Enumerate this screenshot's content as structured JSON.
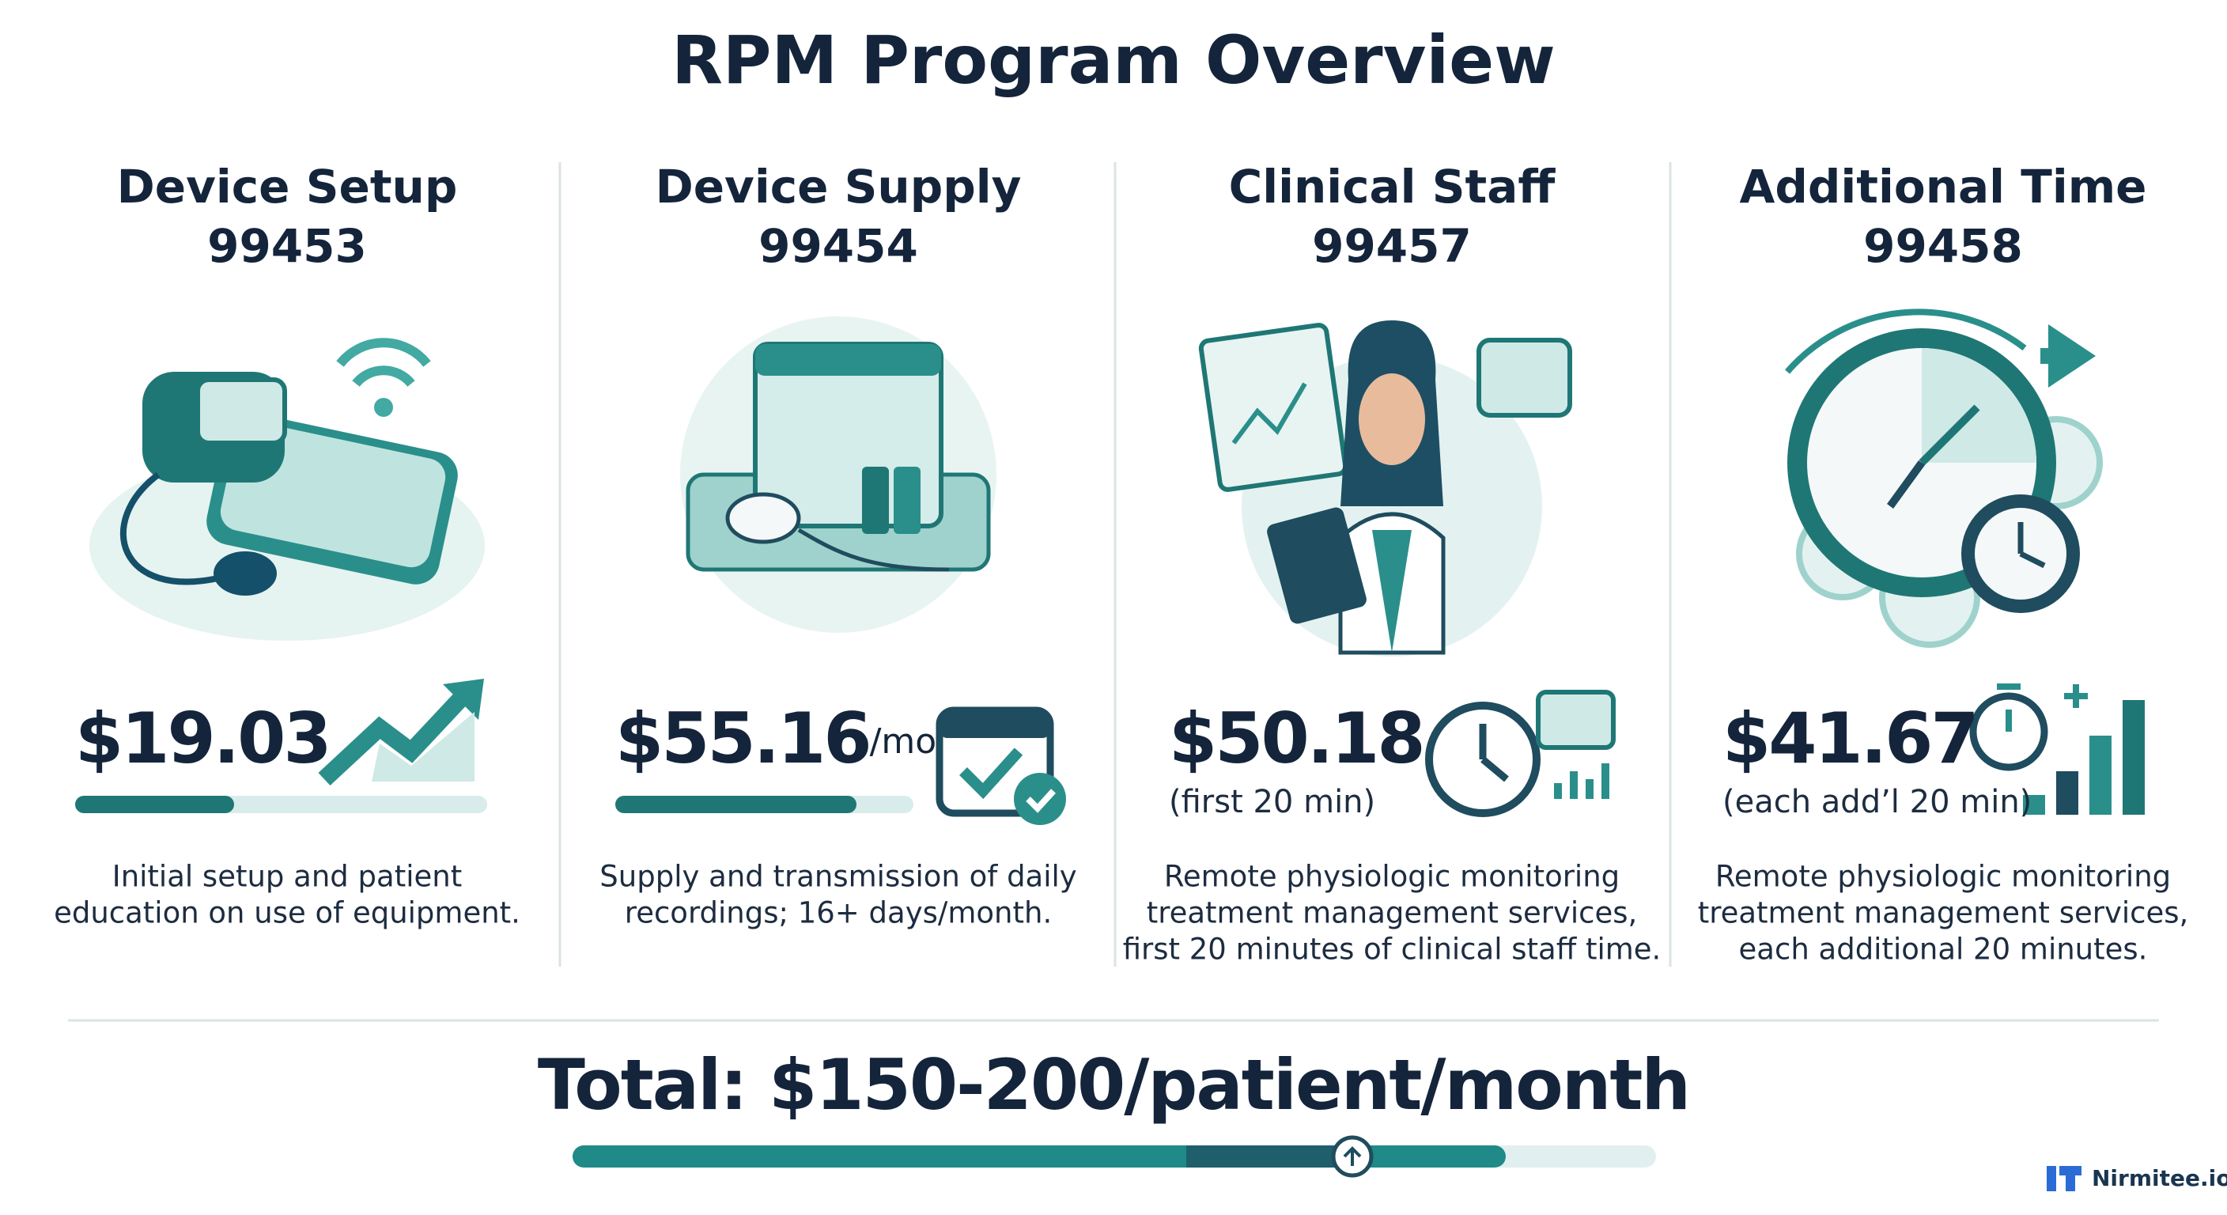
{
  "header": {
    "title": "RPM Program Overview"
  },
  "columns": [
    {
      "title": "Device Setup",
      "code": "99453",
      "price": "$19.03",
      "description": [
        "Initial setup and patient",
        "education on use of equipment."
      ]
    },
    {
      "title": "Device Supply",
      "code": "99454",
      "price": "$55.16",
      "unit": "/mo",
      "description": [
        "Supply and transmission of daily",
        "recordings; 16+ days/month."
      ]
    },
    {
      "title": "Clinical Staff",
      "code": "99457",
      "price": "$50.18",
      "note": "(first 20 min)",
      "description": [
        "Remote physiologic monitoring",
        "treatment management services,",
        "first 20 minutes of clinical staff time."
      ]
    },
    {
      "title": "Additional Time",
      "code": "99458",
      "price": "$41.67",
      "note": "(each add’l 20 min)",
      "description": [
        "Remote physiologic monitoring",
        "treatment management services,",
        "each additional 20 minutes."
      ]
    }
  ],
  "footer": {
    "total": "Total: $150-200/patient/month",
    "brand": "Nirmitee.io"
  }
}
